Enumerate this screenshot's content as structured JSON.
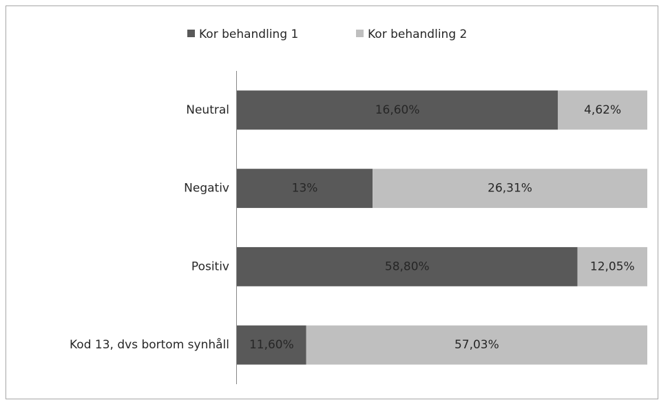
{
  "chart_data": {
    "type": "bar",
    "orientation": "horizontal",
    "stack": "percent",
    "categories": [
      "Neutral",
      "Negativ",
      "Positiv",
      "Kod 13, dvs bortom synhåll"
    ],
    "series": [
      {
        "name": "Kor behandling 1",
        "color": "#595959",
        "values": [
          16.6,
          13,
          58.8,
          11.6
        ],
        "value_labels": [
          "16,60%",
          "13%",
          "58,80%",
          "11,60%"
        ]
      },
      {
        "name": "Kor behandling 2",
        "color": "#bfbfbf",
        "values": [
          4.62,
          26.31,
          12.05,
          57.03
        ],
        "value_labels": [
          "4,62%",
          "26,31%",
          "12,05%",
          "57,03%"
        ]
      }
    ],
    "legend": "top"
  }
}
